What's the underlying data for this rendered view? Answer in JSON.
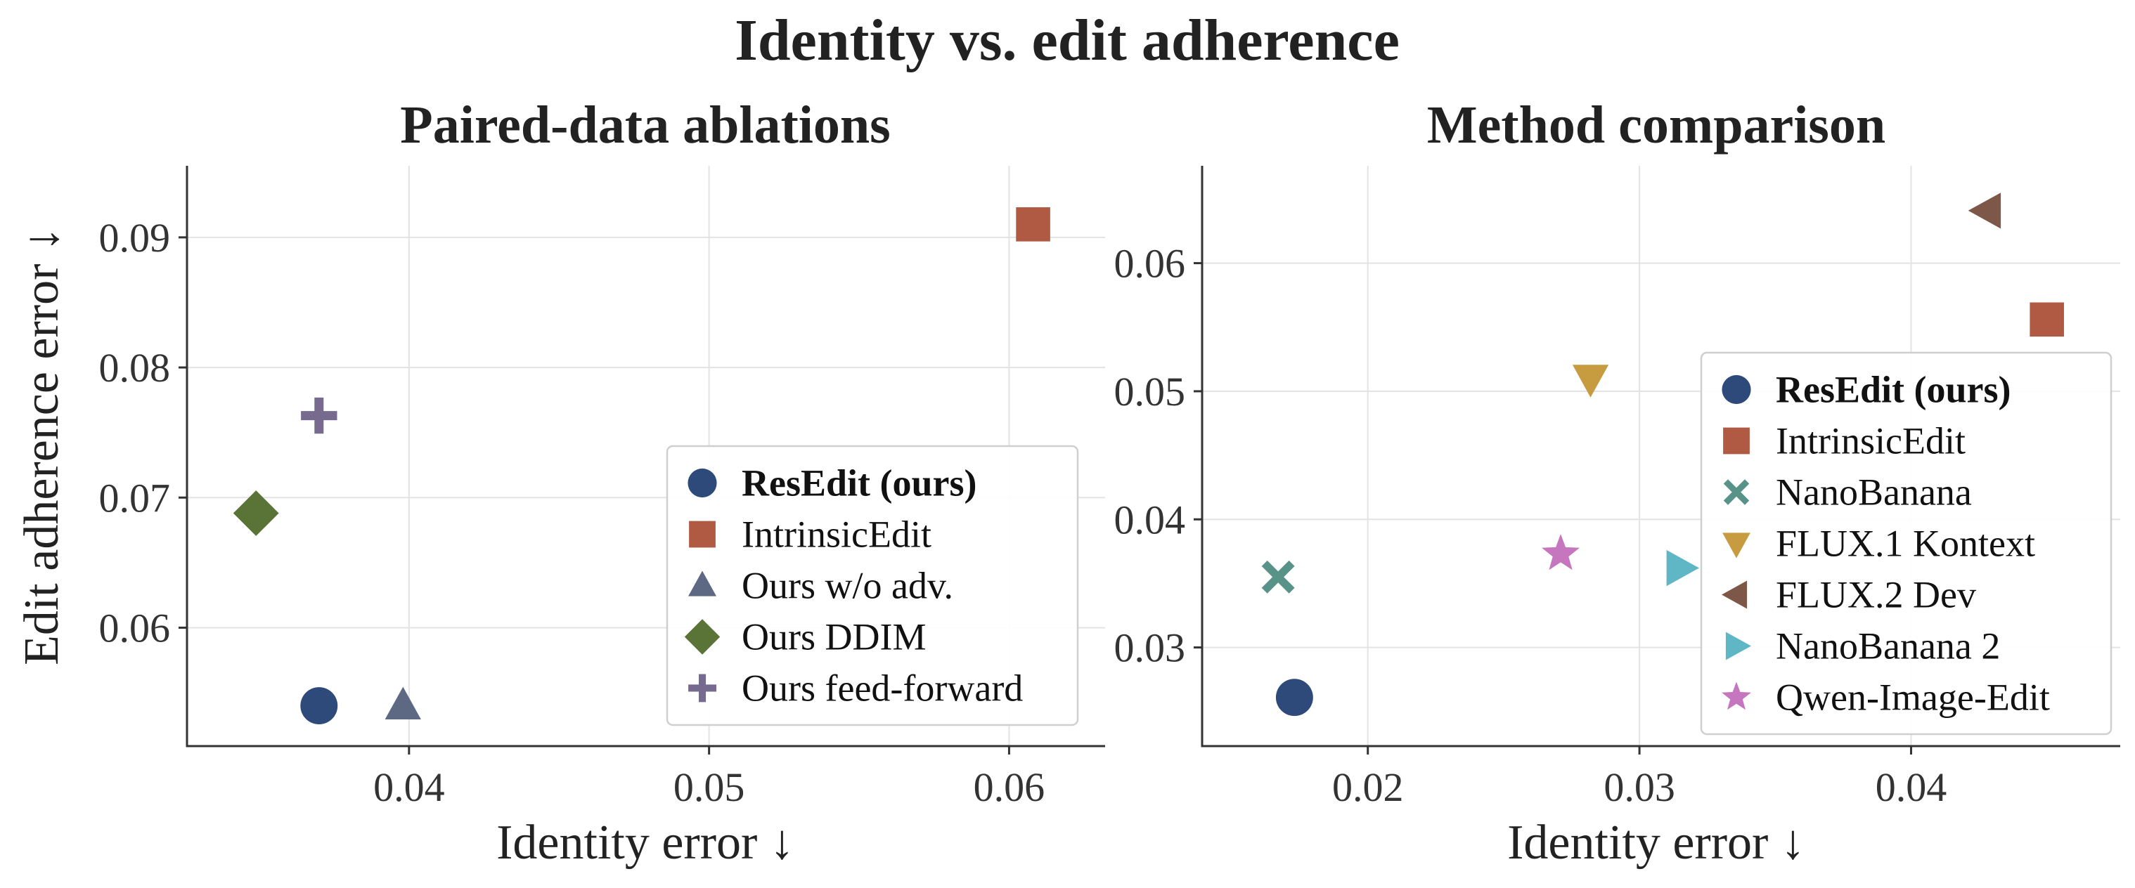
{
  "figure": {
    "title": "Identity vs. edit adherence"
  },
  "colors": {
    "resedit": "#2e4a7b",
    "intrinsicedit": "#b05a43",
    "ours_wo_adv": "#5d6883",
    "ours_ddim": "#5a7337",
    "ours_ff": "#766b8f",
    "nanobanana": "#579389",
    "flux1": "#c79c40",
    "flux2": "#7d5848",
    "nanobanana2": "#5fb7c6",
    "qwen": "#c576bf"
  },
  "chart_data": [
    {
      "type": "scatter",
      "title": "Paired-data ablations",
      "xlabel": "Identity error ↓",
      "ylabel": "Edit adherence error ↓",
      "xlim": [
        0.0326,
        0.0632
      ],
      "ylim": [
        0.0509,
        0.0955
      ],
      "xticks": [
        0.04,
        0.05,
        0.06
      ],
      "yticks": [
        0.06,
        0.07,
        0.08,
        0.09
      ],
      "xtick_labels": [
        "0.04",
        "0.05",
        "0.06"
      ],
      "ytick_labels": [
        "0.06",
        "0.07",
        "0.08",
        "0.09"
      ],
      "grid": true,
      "legend_position": "lower-right",
      "series": [
        {
          "name": "ResEdit (ours)",
          "x": 0.037,
          "y": 0.054,
          "marker": "circle",
          "color_key": "resedit",
          "bold": true
        },
        {
          "name": "IntrinsicEdit",
          "x": 0.0608,
          "y": 0.091,
          "marker": "square",
          "color_key": "intrinsicedit"
        },
        {
          "name": "Ours w/o adv.",
          "x": 0.0398,
          "y": 0.054,
          "marker": "triangle-up",
          "color_key": "ours_wo_adv"
        },
        {
          "name": "Ours DDIM",
          "x": 0.0349,
          "y": 0.0688,
          "marker": "diamond",
          "color_key": "ours_ddim"
        },
        {
          "name": "Ours feed-forward",
          "x": 0.037,
          "y": 0.0763,
          "marker": "plus",
          "color_key": "ours_ff"
        }
      ]
    },
    {
      "type": "scatter",
      "title": "Method comparison",
      "xlabel": "Identity error ↓",
      "ylabel": "",
      "xlim": [
        0.0139,
        0.0477
      ],
      "ylim": [
        0.0223,
        0.0676
      ],
      "xticks": [
        0.02,
        0.03,
        0.04
      ],
      "yticks": [
        0.03,
        0.04,
        0.05,
        0.06
      ],
      "xtick_labels": [
        "0.02",
        "0.03",
        "0.04"
      ],
      "ytick_labels": [
        "0.03",
        "0.04",
        "0.05",
        "0.06"
      ],
      "grid": true,
      "legend_position": "right",
      "series": [
        {
          "name": "ResEdit (ours)",
          "x": 0.0173,
          "y": 0.0261,
          "marker": "circle",
          "color_key": "resedit",
          "bold": true
        },
        {
          "name": "IntrinsicEdit",
          "x": 0.045,
          "y": 0.0556,
          "marker": "square",
          "color_key": "intrinsicedit"
        },
        {
          "name": "NanoBanana",
          "x": 0.0167,
          "y": 0.0355,
          "marker": "x",
          "color_key": "nanobanana"
        },
        {
          "name": "FLUX.1 Kontext",
          "x": 0.0282,
          "y": 0.051,
          "marker": "triangle-down",
          "color_key": "flux1"
        },
        {
          "name": "FLUX.2 Dev",
          "x": 0.0428,
          "y": 0.0641,
          "marker": "triangle-left",
          "color_key": "flux2"
        },
        {
          "name": "NanoBanana 2",
          "x": 0.0315,
          "y": 0.0362,
          "marker": "triangle-right",
          "color_key": "nanobanana2"
        },
        {
          "name": "Qwen-Image-Edit",
          "x": 0.0271,
          "y": 0.0373,
          "marker": "star",
          "color_key": "qwen"
        }
      ]
    }
  ]
}
